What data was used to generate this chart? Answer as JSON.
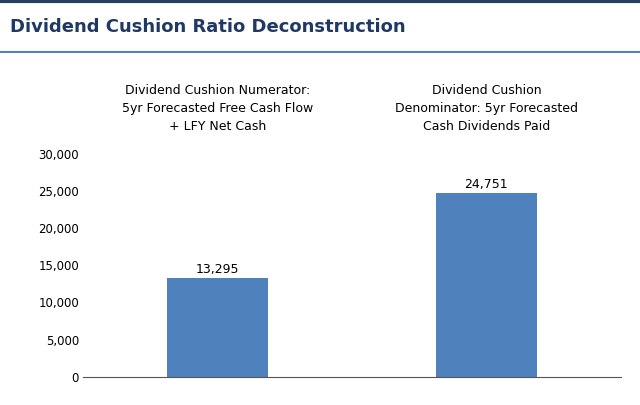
{
  "title": "Dividend Cushion Ratio Deconstruction",
  "bar_values": [
    13295,
    24751
  ],
  "bar_value_labels": [
    "13,295",
    "24,751"
  ],
  "bar_color": "#4f81bd",
  "bar_positions": [
    1,
    3
  ],
  "bar_width": 0.75,
  "ylim": [
    0,
    30000
  ],
  "yticks": [
    0,
    5000,
    10000,
    15000,
    20000,
    25000,
    30000
  ],
  "ytick_labels": [
    "0",
    "5,000",
    "10,000",
    "15,000",
    "20,000",
    "25,000",
    "30,000"
  ],
  "annotation_left": "Dividend Cushion Numerator:\n5yr Forecasted Free Cash Flow\n+ LFY Net Cash",
  "annotation_right": "Dividend Cushion\nDenominator: 5yr Forecasted\nCash Dividends Paid",
  "header_bg_color": "#dce6f1",
  "header_border_top": "#4f6228",
  "header_border_bottom": "#4f81bd",
  "header_text_color": "#1f3864",
  "title_fontsize": 13,
  "annotation_fontsize": 9,
  "value_label_fontsize": 9,
  "background_color": "#ffffff",
  "xlim": [
    0,
    4
  ],
  "left_bar_x": 1,
  "right_bar_x": 3
}
